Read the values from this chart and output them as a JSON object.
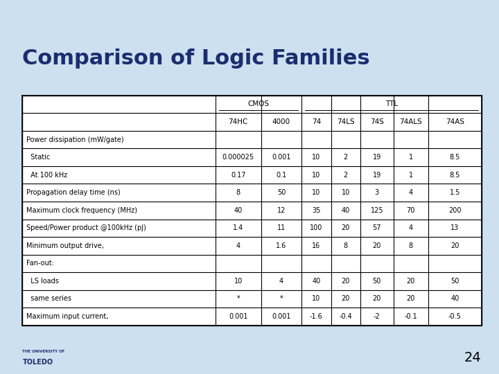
{
  "title": "Comparison of Logic Families",
  "slide_number": "24",
  "bg_color": "#cce0f0",
  "title_color": "#1a2e6e",
  "title_fontsize": 22,
  "bar_dark": "#1a2e6e",
  "bar_gold": "#c8a000",
  "table": {
    "col_headers": [
      "",
      "74HC",
      "4000",
      "74",
      "74LS",
      "74S",
      "74ALS",
      "74AS"
    ],
    "rows": [
      [
        "Power dissipation (mW/gate)",
        "",
        "",
        "",
        "",
        "",
        "",
        ""
      ],
      [
        "  Static",
        "0.000025",
        "0.001",
        "10",
        "2",
        "19",
        "1",
        "8.5"
      ],
      [
        "  At 100 kHz",
        "0.17",
        "0.1",
        "10",
        "2",
        "19",
        "1",
        "8.5"
      ],
      [
        "Propagation delay time (ns)",
        "8",
        "50",
        "10",
        "10",
        "3",
        "4",
        "1.5"
      ],
      [
        "Maximum clock frequency (MHz)",
        "40",
        "12",
        "35",
        "40",
        "125",
        "70",
        "200"
      ],
      [
        "Speed/Power product @100kHz (pJ)",
        "1.4",
        "11",
        "100",
        "20",
        "57",
        "4",
        "13"
      ],
      [
        "Minimum output drive,",
        "4",
        "1.6",
        "16",
        "8",
        "20",
        "8",
        "20"
      ],
      [
        "Fan-out:",
        "",
        "",
        "",
        "",
        "",
        "",
        ""
      ],
      [
        "  LS loads",
        "10",
        "4",
        "40",
        "20",
        "50",
        "20",
        "50"
      ],
      [
        "  same series",
        "*",
        "*",
        "10",
        "20",
        "20",
        "20",
        "40"
      ],
      [
        "Maximum input current,",
        "0.001",
        "0.001",
        "-1.6",
        "-0.4",
        "-2",
        "-0.1",
        "-0.5"
      ]
    ]
  }
}
